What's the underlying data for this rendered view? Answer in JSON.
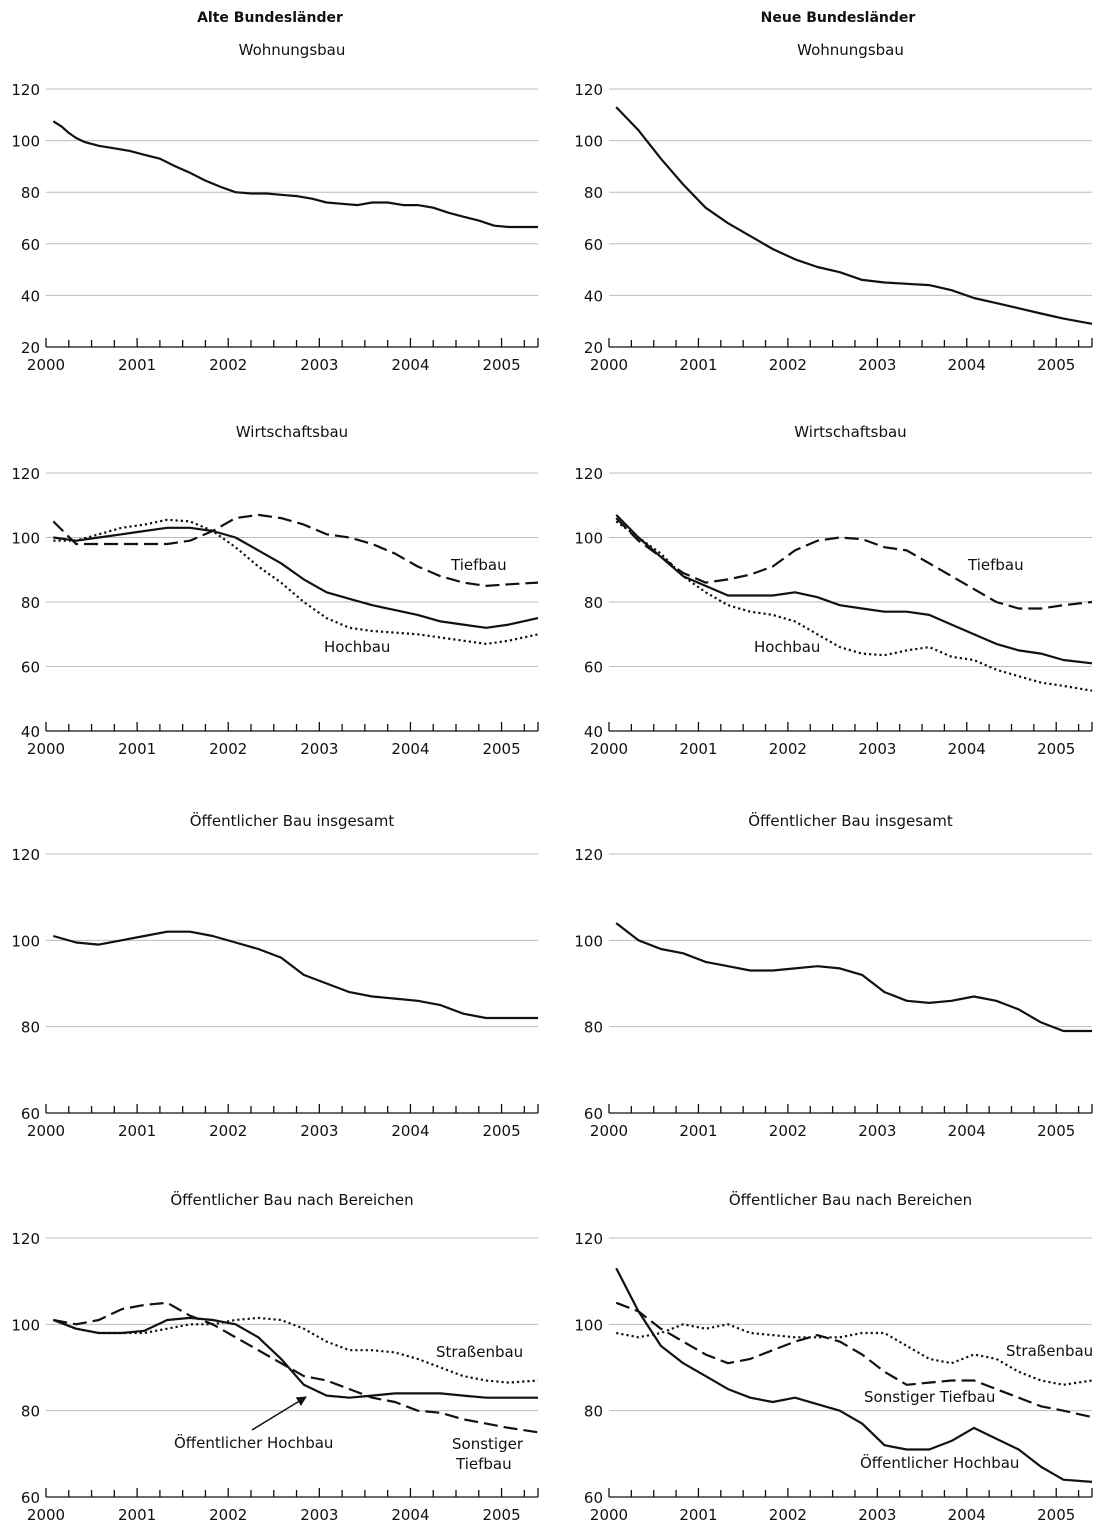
{
  "headers": {
    "left": "Alte Bundesländer",
    "right": "Neue Bundesländer"
  },
  "chart_data": [
    {
      "type": "line",
      "column": "left",
      "title": "Wohnungsbau",
      "xlim": [
        2000,
        2005.4
      ],
      "ylim": [
        20,
        120
      ],
      "yticks": [
        20,
        40,
        60,
        80,
        100,
        120
      ],
      "xticks": [
        "2000",
        "2001",
        "2002",
        "2003",
        "2004",
        "2005"
      ],
      "grid": true,
      "series": [
        {
          "style": "solid",
          "x": [
            2000.08,
            2000.17,
            2000.25,
            2000.33,
            2000.42,
            2000.58,
            2000.75,
            2000.92,
            2001.08,
            2001.25,
            2001.42,
            2001.58,
            2001.75,
            2001.92,
            2002.08,
            2002.25,
            2002.42,
            2002.58,
            2002.75,
            2002.92,
            2003.08,
            2003.25,
            2003.42,
            2003.58,
            2003.75,
            2003.92,
            2004.08,
            2004.25,
            2004.42,
            2004.58,
            2004.75,
            2004.92,
            2005.08,
            2005.25,
            2005.4
          ],
          "y": [
            107.5,
            105.5,
            103,
            101,
            99.5,
            98,
            97,
            96,
            94.5,
            93,
            90,
            87.5,
            84.5,
            82,
            80,
            79.5,
            79.5,
            79,
            78.5,
            77.5,
            76,
            75.5,
            75,
            76,
            76,
            75,
            75,
            74,
            72,
            70.5,
            69,
            67,
            66.5,
            66.5,
            66.5
          ]
        }
      ]
    },
    {
      "type": "line",
      "column": "right",
      "title": "Wohnungsbau",
      "xlim": [
        2000,
        2005.4
      ],
      "ylim": [
        20,
        120
      ],
      "yticks": [
        20,
        40,
        60,
        80,
        100,
        120
      ],
      "xticks": [
        "2000",
        "2001",
        "2002",
        "2003",
        "2004",
        "2005"
      ],
      "grid": true,
      "series": [
        {
          "style": "solid",
          "x": [
            2000.08,
            2000.33,
            2000.58,
            2000.83,
            2001.08,
            2001.33,
            2001.58,
            2001.83,
            2002.08,
            2002.33,
            2002.58,
            2002.83,
            2003.08,
            2003.33,
            2003.58,
            2003.83,
            2004.08,
            2004.33,
            2004.58,
            2004.83,
            2005.08,
            2005.4
          ],
          "y": [
            113,
            104,
            93,
            83,
            74,
            68,
            63,
            58,
            54,
            51,
            49,
            46,
            45,
            44.5,
            44,
            42,
            39,
            37,
            35,
            33,
            31,
            29
          ]
        }
      ]
    },
    {
      "type": "line",
      "column": "left",
      "title": "Wirtschaftsbau",
      "xlim": [
        2000,
        2005.4
      ],
      "ylim": [
        40,
        120
      ],
      "yticks": [
        40,
        60,
        80,
        100,
        120
      ],
      "xticks": [
        "2000",
        "2001",
        "2002",
        "2003",
        "2004",
        "2005"
      ],
      "grid": true,
      "series": [
        {
          "name": "Tiefbau",
          "style": "dashed",
          "x": [
            2000.08,
            2000.33,
            2000.58,
            2000.83,
            2001.08,
            2001.33,
            2001.58,
            2001.83,
            2002.08,
            2002.33,
            2002.58,
            2002.83,
            2003.08,
            2003.33,
            2003.58,
            2003.83,
            2004.08,
            2004.33,
            2004.58,
            2004.83,
            2005.08,
            2005.4
          ],
          "y": [
            105,
            98,
            98,
            98,
            98,
            98,
            99,
            102,
            106,
            107,
            106,
            104,
            101,
            100,
            98,
            95,
            91,
            88,
            86,
            85,
            85.5,
            86
          ]
        },
        {
          "name": "Hochbau",
          "style": "solid",
          "x": [
            2000.08,
            2000.33,
            2000.58,
            2000.83,
            2001.08,
            2001.33,
            2001.58,
            2001.83,
            2002.08,
            2002.33,
            2002.58,
            2002.83,
            2003.08,
            2003.33,
            2003.58,
            2003.83,
            2004.08,
            2004.33,
            2004.58,
            2004.83,
            2005.08,
            2005.4
          ],
          "y": [
            100,
            99,
            100,
            101,
            102,
            103,
            103,
            102,
            100,
            96,
            92,
            87,
            83,
            81,
            79,
            77.5,
            76,
            74,
            73,
            72,
            73,
            75
          ]
        },
        {
          "style": "dotted",
          "x": [
            2000.08,
            2000.33,
            2000.58,
            2000.83,
            2001.08,
            2001.33,
            2001.58,
            2001.83,
            2002.08,
            2002.33,
            2002.58,
            2002.83,
            2003.08,
            2003.33,
            2003.58,
            2003.83,
            2004.08,
            2004.33,
            2004.58,
            2004.83,
            2005.08,
            2005.4
          ],
          "y": [
            99,
            99,
            101,
            103,
            104,
            105.5,
            105,
            102,
            97,
            91,
            86,
            80,
            75,
            72,
            71,
            70.5,
            70,
            69,
            68,
            67,
            68,
            70
          ]
        }
      ]
    },
    {
      "type": "line",
      "column": "right",
      "title": "Wirtschaftsbau",
      "xlim": [
        2000,
        2005.4
      ],
      "ylim": [
        40,
        120
      ],
      "yticks": [
        40,
        60,
        80,
        100,
        120
      ],
      "xticks": [
        "2000",
        "2001",
        "2002",
        "2003",
        "2004",
        "2005"
      ],
      "grid": true,
      "series": [
        {
          "name": "Tiefbau",
          "style": "dashed",
          "x": [
            2000.08,
            2000.33,
            2000.58,
            2000.83,
            2001.08,
            2001.33,
            2001.58,
            2001.83,
            2002.08,
            2002.33,
            2002.58,
            2002.83,
            2003.08,
            2003.33,
            2003.58,
            2003.83,
            2004.08,
            2004.33,
            2004.58,
            2004.83,
            2005.08,
            2005.4
          ],
          "y": [
            106,
            99,
            94,
            89,
            86,
            87,
            88.5,
            91,
            96,
            99,
            100,
            99.5,
            97,
            96,
            92,
            88,
            84,
            80,
            78,
            78,
            79,
            80
          ]
        },
        {
          "name": "Hochbau",
          "style": "solid",
          "x": [
            2000.08,
            2000.33,
            2000.58,
            2000.83,
            2001.08,
            2001.33,
            2001.58,
            2001.83,
            2002.08,
            2002.33,
            2002.58,
            2002.83,
            2003.08,
            2003.33,
            2003.58,
            2003.83,
            2004.08,
            2004.33,
            2004.58,
            2004.83,
            2005.08,
            2005.4
          ],
          "y": [
            107,
            100,
            94,
            88,
            85,
            82,
            82,
            82,
            83,
            81.5,
            79,
            78,
            77,
            77,
            76,
            73,
            70,
            67,
            65,
            64,
            62,
            61
          ]
        },
        {
          "style": "dotted",
          "x": [
            2000.08,
            2000.33,
            2000.58,
            2000.83,
            2001.08,
            2001.33,
            2001.58,
            2001.83,
            2002.08,
            2002.33,
            2002.58,
            2002.83,
            2003.08,
            2003.33,
            2003.58,
            2003.83,
            2004.08,
            2004.33,
            2004.58,
            2004.83,
            2005.08,
            2005.4
          ],
          "y": [
            105,
            100,
            95,
            88,
            83,
            79,
            77,
            76,
            74,
            70,
            66,
            64,
            63.5,
            65,
            66,
            63,
            62,
            59,
            57,
            55,
            54,
            52.5
          ]
        }
      ]
    },
    {
      "type": "line",
      "column": "left",
      "title": "Öffentlicher Bau insgesamt",
      "xlim": [
        2000,
        2005.4
      ],
      "ylim": [
        60,
        120
      ],
      "yticks": [
        60,
        80,
        100,
        120
      ],
      "xticks": [
        "2000",
        "2001",
        "2002",
        "2003",
        "2004",
        "2005"
      ],
      "grid": true,
      "series": [
        {
          "style": "solid",
          "x": [
            2000.08,
            2000.33,
            2000.58,
            2000.83,
            2001.08,
            2001.33,
            2001.58,
            2001.83,
            2002.08,
            2002.33,
            2002.58,
            2002.83,
            2003.08,
            2003.33,
            2003.58,
            2003.83,
            2004.08,
            2004.33,
            2004.58,
            2004.83,
            2005.08,
            2005.4
          ],
          "y": [
            101,
            99.5,
            99,
            100,
            101,
            102,
            102,
            101,
            99.5,
            98,
            96,
            92,
            90,
            88,
            87,
            86.5,
            86,
            85,
            83,
            82,
            82,
            82
          ]
        }
      ]
    },
    {
      "type": "line",
      "column": "right",
      "title": "Öffentlicher Bau insgesamt",
      "xlim": [
        2000,
        2005.4
      ],
      "ylim": [
        60,
        120
      ],
      "yticks": [
        60,
        80,
        100,
        120
      ],
      "xticks": [
        "2000",
        "2001",
        "2002",
        "2003",
        "2004",
        "2005"
      ],
      "grid": true,
      "series": [
        {
          "style": "solid",
          "x": [
            2000.08,
            2000.33,
            2000.58,
            2000.83,
            2001.08,
            2001.33,
            2001.58,
            2001.83,
            2002.08,
            2002.33,
            2002.58,
            2002.83,
            2003.08,
            2003.33,
            2003.58,
            2003.83,
            2004.08,
            2004.33,
            2004.58,
            2004.83,
            2005.08,
            2005.4
          ],
          "y": [
            104,
            100,
            98,
            97,
            95,
            94,
            93,
            93,
            93.5,
            94,
            93.5,
            92,
            88,
            86,
            85.5,
            86,
            87,
            86,
            84,
            81,
            79,
            79
          ]
        }
      ]
    },
    {
      "type": "line",
      "column": "left",
      "title": "Öffentlicher Bau nach Bereichen",
      "xlim": [
        2000,
        2005.4
      ],
      "ylim": [
        60,
        120
      ],
      "yticks": [
        60,
        80,
        100,
        120
      ],
      "xticks": [
        "2000",
        "2001",
        "2002",
        "2003",
        "2004",
        "2005"
      ],
      "grid": true,
      "series": [
        {
          "name": "Straßenbau",
          "style": "dotted",
          "x": [
            2000.08,
            2000.33,
            2000.58,
            2000.83,
            2001.08,
            2001.33,
            2001.58,
            2001.83,
            2002.08,
            2002.33,
            2002.58,
            2002.83,
            2003.08,
            2003.33,
            2003.58,
            2003.83,
            2004.08,
            2004.33,
            2004.58,
            2004.83,
            2005.08,
            2005.4
          ],
          "y": [
            101,
            99,
            98,
            98,
            98,
            99,
            100,
            100,
            101,
            101.5,
            101,
            99,
            96,
            94,
            94,
            93.5,
            92,
            90,
            88,
            87,
            86.5,
            87
          ]
        },
        {
          "name": "Sonstiger Tiefbau",
          "style": "dashed",
          "x": [
            2000.08,
            2000.33,
            2000.58,
            2000.83,
            2001.08,
            2001.33,
            2001.58,
            2001.83,
            2002.08,
            2002.33,
            2002.58,
            2002.83,
            2003.08,
            2003.33,
            2003.58,
            2003.83,
            2004.08,
            2004.33,
            2004.58,
            2004.83,
            2005.08,
            2005.4
          ],
          "y": [
            101,
            100,
            101,
            103.5,
            104.5,
            105,
            102,
            100,
            97,
            94,
            91,
            88,
            87,
            85,
            83,
            82,
            80,
            79.5,
            78,
            77,
            76,
            75
          ]
        },
        {
          "name": "Öffentlicher Hochbau",
          "style": "solid",
          "x": [
            2000.08,
            2000.33,
            2000.58,
            2000.83,
            2001.08,
            2001.33,
            2001.58,
            2001.83,
            2002.08,
            2002.33,
            2002.58,
            2002.83,
            2003.08,
            2003.33,
            2003.58,
            2003.83,
            2004.08,
            2004.33,
            2004.58,
            2004.83,
            2005.08,
            2005.4
          ],
          "y": [
            101,
            99,
            98,
            98,
            98.5,
            101,
            101.5,
            101,
            100,
            97,
            92,
            86,
            83.5,
            83,
            83.5,
            84,
            84,
            84,
            83.5,
            83,
            83,
            83
          ]
        }
      ],
      "annotations": {
        "arrow_label": "Öffentlicher Hochbau",
        "label_1": "Straßenbau",
        "label_2_line1": "Sonstiger",
        "label_2_line2": "Tiefbau"
      }
    },
    {
      "type": "line",
      "column": "right",
      "title": "Öffentlicher Bau nach Bereichen",
      "xlim": [
        2000,
        2005.4
      ],
      "ylim": [
        60,
        120
      ],
      "yticks": [
        60,
        80,
        100,
        120
      ],
      "xticks": [
        "2000",
        "2001",
        "2002",
        "2003",
        "2004",
        "2005"
      ],
      "grid": true,
      "series": [
        {
          "name": "Straßenbau",
          "style": "dotted",
          "x": [
            2000.08,
            2000.33,
            2000.58,
            2000.83,
            2001.08,
            2001.33,
            2001.58,
            2001.83,
            2002.08,
            2002.33,
            2002.58,
            2002.83,
            2003.08,
            2003.33,
            2003.58,
            2003.83,
            2004.08,
            2004.33,
            2004.58,
            2004.83,
            2005.08,
            2005.4
          ],
          "y": [
            98,
            97,
            98,
            100,
            99,
            100,
            98,
            97.5,
            97,
            97,
            97,
            98,
            98,
            95,
            92,
            91,
            93,
            92,
            89,
            87,
            86,
            87
          ]
        },
        {
          "name": "Sonstiger Tiefbau",
          "style": "dashed",
          "x": [
            2000.08,
            2000.33,
            2000.58,
            2000.83,
            2001.08,
            2001.33,
            2001.58,
            2001.83,
            2002.08,
            2002.33,
            2002.58,
            2002.83,
            2003.08,
            2003.33,
            2003.58,
            2003.83,
            2004.08,
            2004.33,
            2004.58,
            2004.83,
            2005.08,
            2005.4
          ],
          "y": [
            105,
            103,
            99,
            96,
            93,
            91,
            92,
            94,
            96,
            97.5,
            96,
            93,
            89,
            86,
            86.5,
            87,
            87,
            85,
            83,
            81,
            80,
            78.5
          ]
        },
        {
          "name": "Öffentlicher Hochbau",
          "style": "solid",
          "x": [
            2000.08,
            2000.33,
            2000.58,
            2000.83,
            2001.08,
            2001.33,
            2001.58,
            2001.83,
            2002.08,
            2002.33,
            2002.58,
            2002.83,
            2003.08,
            2003.33,
            2003.58,
            2003.83,
            2004.08,
            2004.33,
            2004.58,
            2004.83,
            2005.08,
            2005.4
          ],
          "y": [
            113,
            103,
            95,
            91,
            88,
            85,
            83,
            82,
            83,
            81.5,
            80,
            77,
            72,
            71,
            71,
            73,
            76,
            73.5,
            71,
            67,
            64,
            63.5
          ]
        }
      ],
      "annotations": {
        "label_1": "Straßenbau",
        "label_2": "Sonstiger Tiefbau",
        "label_3": "Öffentlicher Hochbau"
      }
    }
  ]
}
